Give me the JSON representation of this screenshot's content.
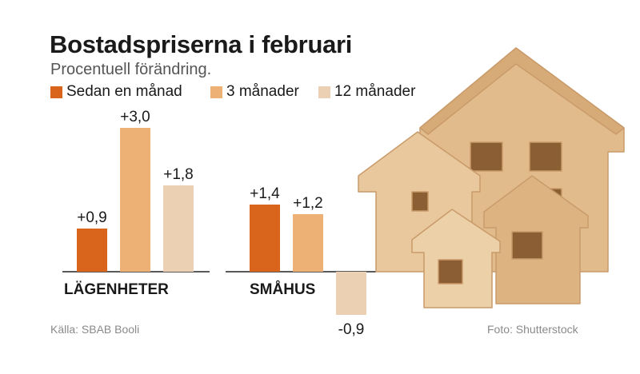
{
  "title": "Bostadspriserna i februari",
  "subtitle": "Procentuell förändring.",
  "legend": [
    {
      "label": "Sedan en månad",
      "color": "#d9641c"
    },
    {
      "label": "3 månader",
      "color": "#edb175"
    },
    {
      "label": "12 månader",
      "color": "#ecd0b3"
    }
  ],
  "source": "Källa: SBAB Booli",
  "photo_credit": "Foto: Shutterstock",
  "chart_data": {
    "type": "bar",
    "title": "Bostadspriserna i februari",
    "subtitle": "Procentuell förändring.",
    "categories": [
      "LÄGENHETER",
      "SMÅHUS"
    ],
    "series": [
      {
        "name": "Sedan en månad",
        "values": [
          0.9,
          1.4
        ],
        "labels": [
          "+0,9",
          "+1,4"
        ],
        "color": "#d9641c"
      },
      {
        "name": "3 månader",
        "values": [
          3.0,
          1.2
        ],
        "labels": [
          "+3,0",
          "+1,2"
        ],
        "color": "#edb175"
      },
      {
        "name": "12 månader",
        "values": [
          1.8,
          -0.9
        ],
        "labels": [
          "+1,8",
          "-0,9"
        ],
        "color": "#ecd0b3"
      }
    ],
    "grid": false,
    "legend_position": "top"
  }
}
